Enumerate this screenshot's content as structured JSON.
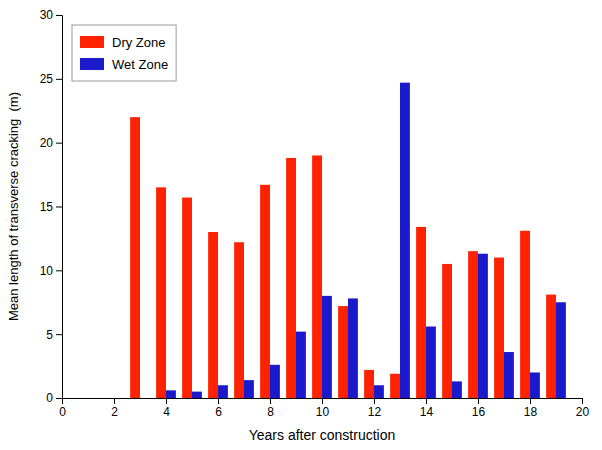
{
  "chart_data": {
    "type": "bar",
    "x": [
      3,
      4,
      5,
      6,
      7,
      8,
      9,
      10,
      11,
      12,
      13,
      14,
      15,
      16,
      17,
      18,
      19
    ],
    "series": [
      {
        "name": "Dry Zone",
        "color": "#FF2200",
        "values": [
          22.0,
          16.5,
          15.7,
          13.0,
          12.2,
          16.7,
          18.8,
          19.0,
          7.2,
          2.2,
          1.9,
          13.4,
          10.5,
          11.5,
          11.0,
          13.1,
          8.1
        ]
      },
      {
        "name": "Wet Zone",
        "color": "#1A1ACC",
        "values": [
          0,
          0.6,
          0.5,
          1.0,
          1.4,
          2.6,
          5.2,
          8.0,
          7.8,
          1.0,
          24.7,
          5.6,
          1.3,
          11.3,
          3.6,
          2.0,
          7.5
        ]
      }
    ],
    "xlabel": "Years after construction",
    "ylabel": "Mean length of transverse cracking  (m)",
    "xlim": [
      0,
      20
    ],
    "ylim": [
      0,
      30
    ],
    "xticks": [
      0,
      2,
      4,
      6,
      8,
      10,
      12,
      14,
      16,
      18,
      20
    ],
    "yticks": [
      0,
      5,
      10,
      15,
      20,
      25,
      30
    ],
    "legend": "upper left",
    "grid": false
  }
}
